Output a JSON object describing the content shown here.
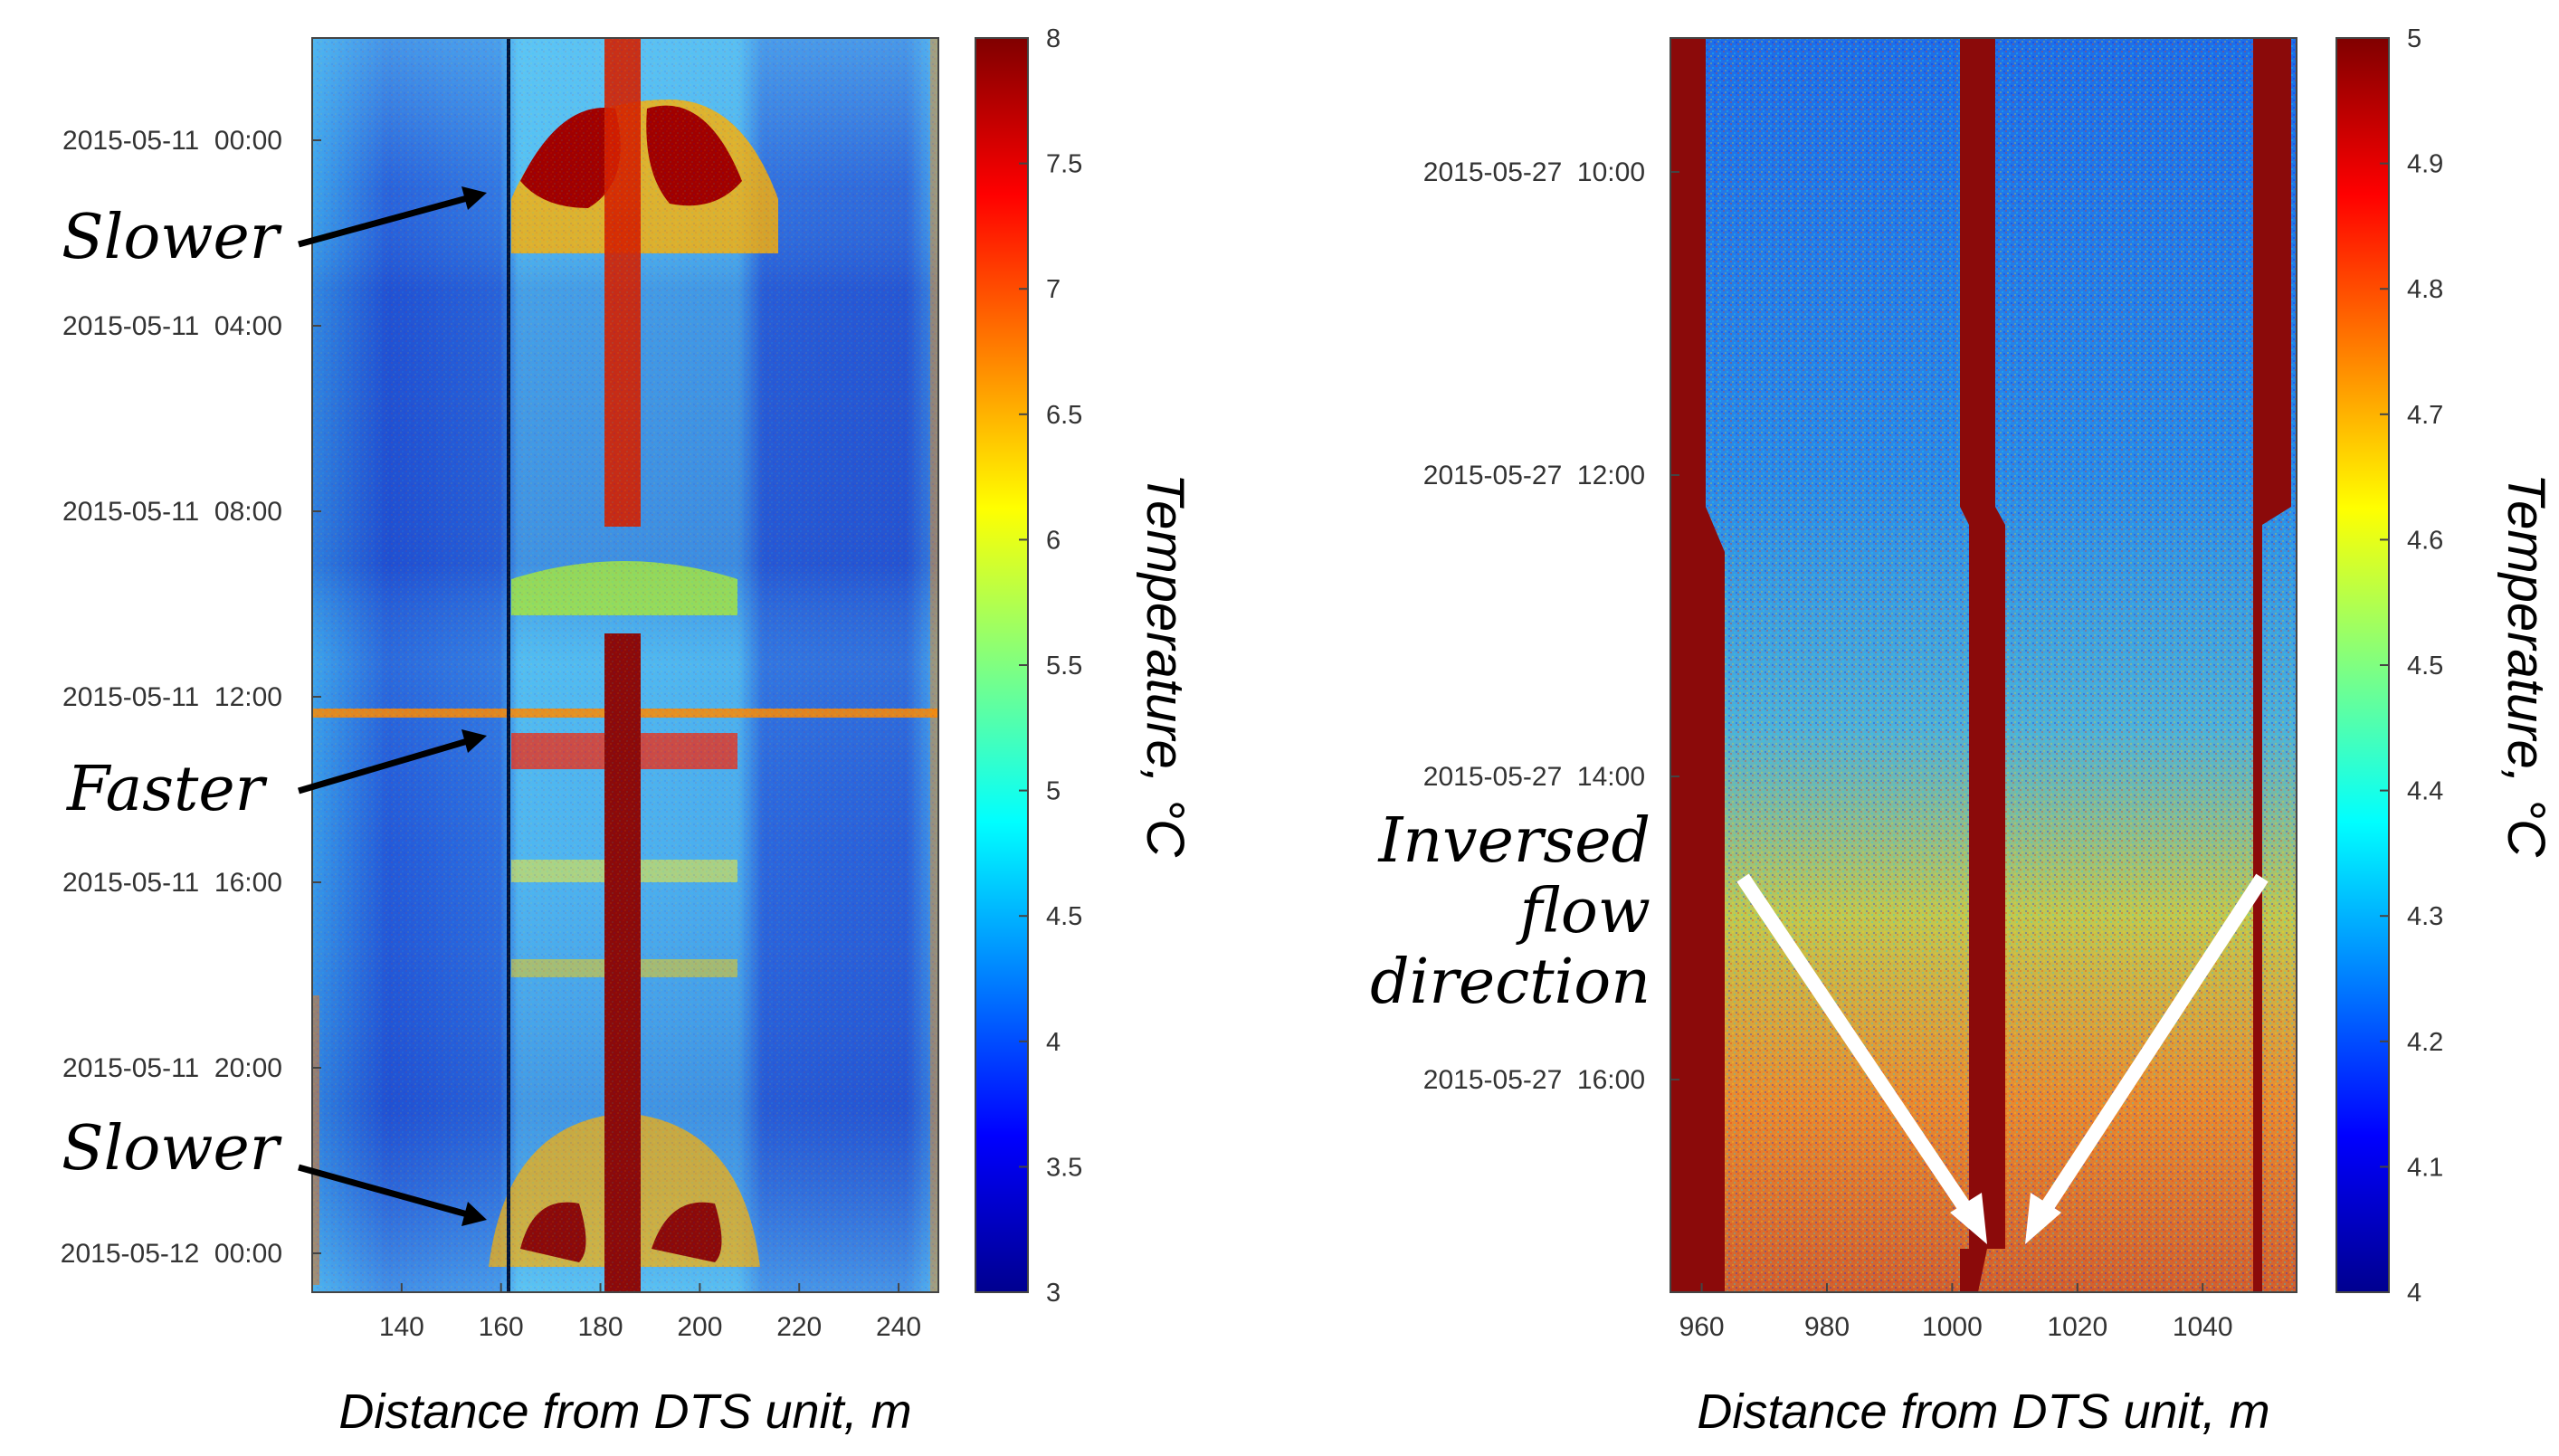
{
  "chart_data": [
    {
      "type": "heatmap",
      "xlabel": "Distance from DTS unit, m",
      "colorbar_label": "Temperature, °C",
      "xlim": [
        122,
        248
      ],
      "x_ticks": [
        140,
        160,
        180,
        200,
        220,
        240
      ],
      "y_ticks": [
        "2015-05-11  00:00",
        "2015-05-11  04:00",
        "2015-05-11  08:00",
        "2015-05-11  12:00",
        "2015-05-11  16:00",
        "2015-05-11  20:00",
        "2015-05-12  00:00"
      ],
      "colorbar_range": [
        3,
        8
      ],
      "colorbar_ticks": [
        "3",
        "3.5",
        "4",
        "4.5",
        "5",
        "5.5",
        "6",
        "6.5",
        "7",
        "7.5",
        "8"
      ],
      "annotations": [
        "Slower",
        "Faster",
        "Slower"
      ]
    },
    {
      "type": "heatmap",
      "xlabel": "Distance from DTS unit, m",
      "colorbar_label": "Temperature, °C",
      "xlim": [
        955,
        1055
      ],
      "x_ticks": [
        960,
        980,
        1000,
        1020,
        1040
      ],
      "y_ticks": [
        "2015-05-27  10:00",
        "2015-05-27  12:00",
        "2015-05-27  14:00",
        "2015-05-27  16:00"
      ],
      "colorbar_range": [
        4,
        5
      ],
      "colorbar_ticks": [
        "4",
        "4.1",
        "4.2",
        "4.3",
        "4.4",
        "4.5",
        "4.6",
        "4.7",
        "4.8",
        "4.9",
        "5"
      ],
      "annotations": [
        "Inversed",
        "flow",
        "direction"
      ]
    }
  ],
  "colors": {
    "jet": [
      "#00008f",
      "#0000ff",
      "#0080ff",
      "#00ffff",
      "#80ff80",
      "#ffff00",
      "#ff8000",
      "#ff0000",
      "#800000"
    ],
    "deep_blue": "#1a3fc9",
    "light_blue": "#4fb6ef",
    "dark_red": "#8b0a0a",
    "arrow_white": "#ffffff",
    "arrow_black": "#000000"
  }
}
